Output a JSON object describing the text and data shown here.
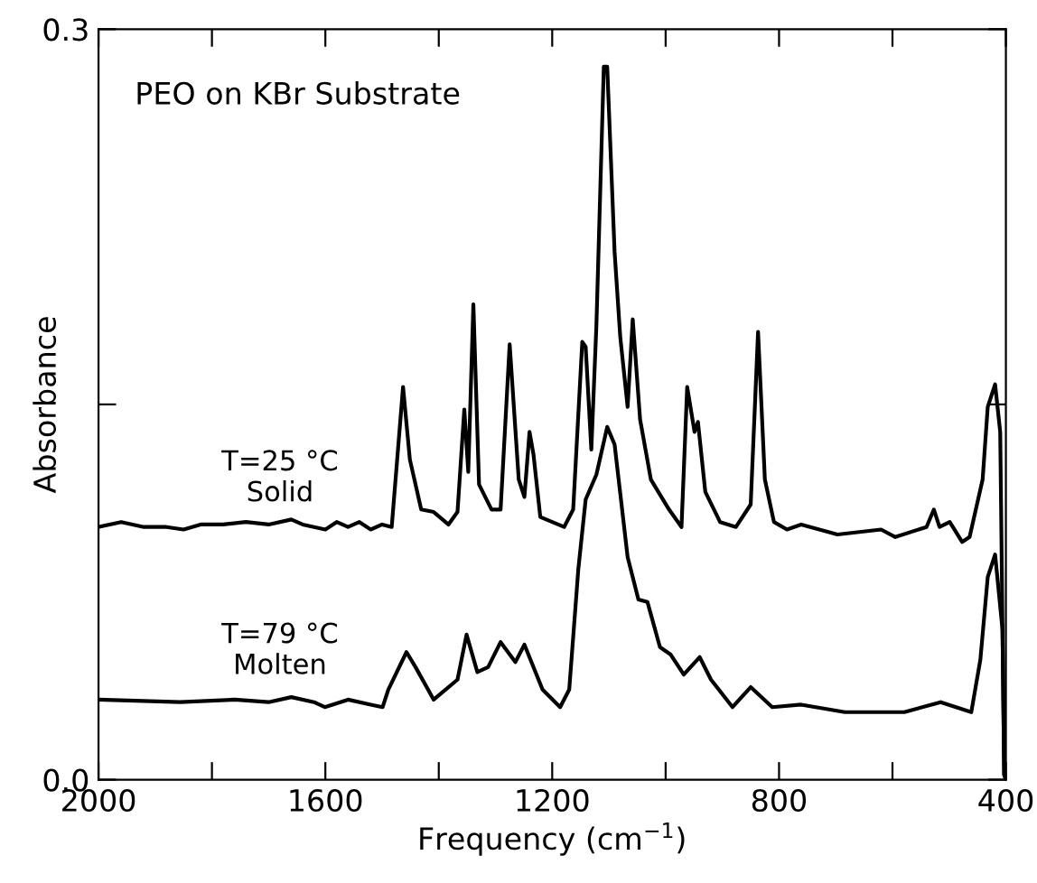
{
  "chart_data": {
    "type": "line",
    "annotations": [
      "PEO on KBr Substrate"
    ],
    "xlabel": "Frequency (cm$^{−1}$)",
    "ylabel": "Absorbance",
    "xlim": [
      2000,
      400
    ],
    "ylim": [
      0.0,
      0.3
    ],
    "xticks": [
      2000,
      {
        "value": 1800,
        "label": null
      },
      1600,
      {
        "value": 1400,
        "label": null
      },
      1200,
      {
        "value": 1000,
        "label": null
      },
      800,
      {
        "value": 600,
        "label": null
      },
      400
    ],
    "yticks": [
      {
        "value": 0.0,
        "label": "0.0"
      },
      {
        "value": 0.15,
        "label": null
      },
      {
        "value": 0.3,
        "label": "0.3"
      }
    ],
    "grid": false,
    "legend": false,
    "marker": "none",
    "line_style": "solid",
    "series": [
      {
        "name": "T=25 °C\nSolid",
        "color": "#000000",
        "x": [
          2000,
          1960,
          1920,
          1880,
          1850,
          1820,
          1780,
          1740,
          1700,
          1660,
          1640,
          1620,
          1600,
          1580,
          1560,
          1540,
          1520,
          1500,
          1483,
          1463,
          1451,
          1431,
          1409,
          1383,
          1367,
          1355,
          1348,
          1339,
          1329,
          1307,
          1291,
          1275,
          1259,
          1249,
          1240,
          1233,
          1221,
          1179,
          1163,
          1147,
          1141,
          1131,
          1122,
          1109,
          1103,
          1090,
          1080,
          1067,
          1058,
          1045,
          1026,
          994,
          972,
          962,
          949,
          943,
          930,
          904,
          876,
          850,
          837,
          825,
          809,
          786,
          761,
          697,
          620,
          595,
          540,
          527,
          517,
          499,
          477,
          464,
          441,
          432,
          419,
          410,
          403,
          400
        ],
        "values": [
          0.101,
          0.103,
          0.101,
          0.101,
          0.1,
          0.102,
          0.102,
          0.103,
          0.102,
          0.104,
          0.102,
          0.101,
          0.1,
          0.103,
          0.101,
          0.103,
          0.1,
          0.102,
          0.101,
          0.157,
          0.128,
          0.108,
          0.107,
          0.102,
          0.107,
          0.148,
          0.123,
          0.19,
          0.118,
          0.108,
          0.108,
          0.174,
          0.12,
          0.113,
          0.139,
          0.13,
          0.105,
          0.101,
          0.108,
          0.175,
          0.173,
          0.132,
          0.182,
          0.285,
          0.285,
          0.211,
          0.177,
          0.149,
          0.184,
          0.144,
          0.12,
          0.108,
          0.101,
          0.157,
          0.139,
          0.143,
          0.115,
          0.103,
          0.101,
          0.11,
          0.179,
          0.12,
          0.103,
          0.1,
          0.102,
          0.098,
          0.1,
          0.097,
          0.101,
          0.108,
          0.101,
          0.103,
          0.095,
          0.097,
          0.12,
          0.149,
          0.158,
          0.139,
          0.002,
          0.0
        ]
      },
      {
        "name": "T=79 °C\nMolten",
        "color": "#000000",
        "x": [
          2000,
          1856,
          1760,
          1700,
          1660,
          1620,
          1601,
          1560,
          1520,
          1499,
          1489,
          1457,
          1441,
          1409,
          1367,
          1351,
          1332,
          1313,
          1291,
          1265,
          1249,
          1217,
          1186,
          1170,
          1154,
          1141,
          1122,
          1103,
          1090,
          1067,
          1048,
          1032,
          1010,
          991,
          968,
          940,
          920,
          882,
          850,
          812,
          761,
          684,
          611,
          579,
          515,
          461,
          445,
          432,
          419,
          406,
          403,
          400
        ],
        "values": [
          0.032,
          0.031,
          0.032,
          0.031,
          0.033,
          0.031,
          0.029,
          0.032,
          0.03,
          0.029,
          0.036,
          0.051,
          0.045,
          0.032,
          0.04,
          0.058,
          0.043,
          0.045,
          0.055,
          0.047,
          0.054,
          0.036,
          0.029,
          0.036,
          0.084,
          0.112,
          0.122,
          0.141,
          0.134,
          0.089,
          0.072,
          0.071,
          0.053,
          0.05,
          0.042,
          0.049,
          0.04,
          0.029,
          0.037,
          0.029,
          0.03,
          0.027,
          0.027,
          0.027,
          0.031,
          0.027,
          0.048,
          0.081,
          0.09,
          0.06,
          0.002,
          0.0
        ]
      }
    ]
  }
}
